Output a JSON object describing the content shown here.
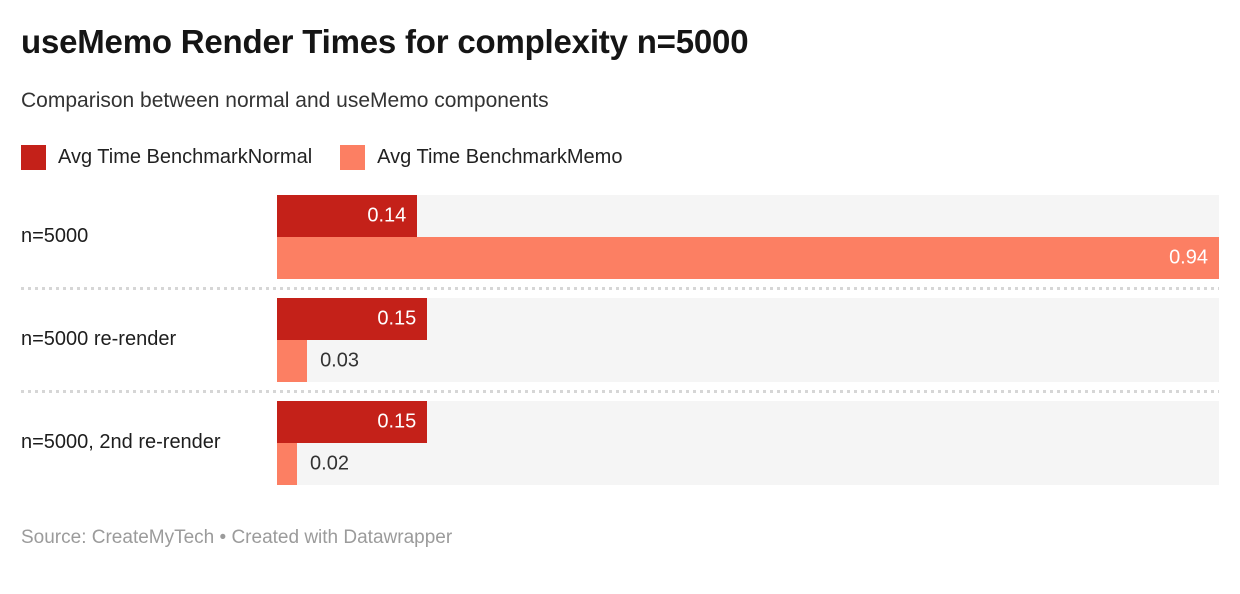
{
  "header": {
    "title": "useMemo Render Times for complexity n=5000",
    "subtitle": "Comparison between normal and useMemo components"
  },
  "legend": {
    "items": [
      {
        "label": "Avg Time BenchmarkNormal",
        "color": "#c42119"
      },
      {
        "label": "Avg Time BenchmarkMemo",
        "color": "#fc7f63"
      }
    ]
  },
  "chart_data": {
    "type": "bar",
    "orientation": "horizontal",
    "title": "useMemo Render Times for complexity n=5000",
    "subtitle": "Comparison between normal and useMemo components",
    "categories": [
      "n=5000",
      "n=5000 re-render",
      "n=5000, 2nd re-render"
    ],
    "series": [
      {
        "name": "Avg Time BenchmarkNormal",
        "color": "#c42119",
        "values": [
          0.14,
          0.15,
          0.15
        ]
      },
      {
        "name": "Avg Time BenchmarkMemo",
        "color": "#fc7f63",
        "values": [
          0.94,
          0.03,
          0.02
        ]
      }
    ],
    "value_labels": [
      [
        "0.14",
        "0.15",
        "0.15"
      ],
      [
        "0.94",
        "0.03",
        "0.02"
      ]
    ],
    "xmax": 0.94,
    "track_color": "#f5f5f5",
    "grid": false,
    "legend_position": "top"
  },
  "footer": {
    "text": "Source: CreateMyTech • Created with Datawrapper"
  }
}
